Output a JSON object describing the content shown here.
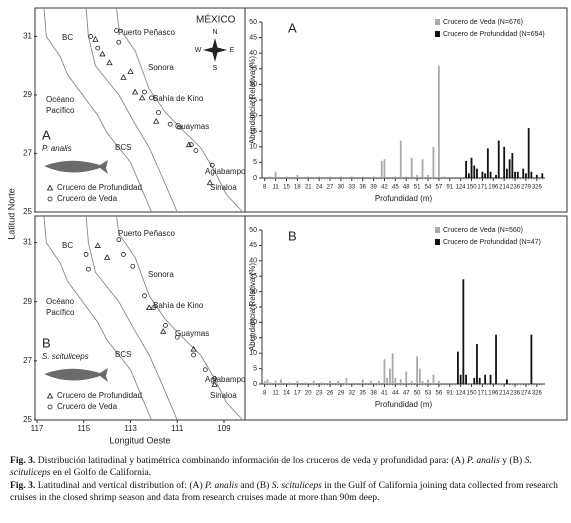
{
  "figure": {
    "ylabel": "Latitud Norte",
    "xlabel": "Longitud Oeste"
  },
  "chart_data": [
    {
      "type": "map",
      "panel": "A",
      "species": "P. analis",
      "places": [
        "BC",
        "Puerto Peñasco",
        "MÉXICO",
        "Sonora",
        "Océano",
        "Pacífico",
        "Bahía de Kino",
        "Guaymas",
        "BCS",
        "Agiabampo",
        "Sinaloa"
      ],
      "compass": [
        "N",
        "E",
        "S",
        "W"
      ],
      "xlim": [
        117,
        108.1
      ],
      "ylim": [
        25,
        31.97
      ],
      "yticks": [
        25,
        27,
        29,
        31
      ],
      "series": [
        {
          "name": "Crucero de Profundidad",
          "marker": "triangle",
          "x": [
            114.5,
            114.2,
            113.9,
            113.3,
            113.0,
            112.8,
            112.5,
            111.9,
            110.5,
            109.6
          ],
          "y": [
            30.9,
            30.4,
            30.1,
            29.6,
            29.8,
            29.1,
            28.9,
            28.1,
            27.3,
            26.0
          ]
        },
        {
          "name": "Crucero de Veda",
          "marker": "circle",
          "x": [
            114.7,
            114.4,
            113.6,
            113.5,
            112.4,
            112.1,
            111.8,
            111.3,
            110.9,
            110.4,
            110.2,
            109.5
          ],
          "y": [
            31.0,
            30.6,
            31.2,
            30.8,
            29.1,
            28.9,
            28.4,
            28.0,
            27.9,
            27.3,
            27.1,
            26.6
          ]
        }
      ]
    },
    {
      "type": "bar",
      "panel": "A",
      "ylabel": "Abundancia Relativa (%)",
      "xlabel": "Profundidad (m)",
      "xlim": [
        0,
        104
      ],
      "ylim": [
        0,
        50
      ],
      "yticks": [
        0,
        5,
        10,
        15,
        20,
        25,
        30,
        35,
        40,
        45,
        50
      ],
      "xticks": [
        {
          "value": 1,
          "label": "8"
        },
        {
          "value": 5,
          "label": "11"
        },
        {
          "value": 9,
          "label": "15"
        },
        {
          "value": 13,
          "label": "18"
        },
        {
          "value": 17,
          "label": "21"
        },
        {
          "value": 21,
          "label": "24"
        },
        {
          "value": 25,
          "label": "27"
        },
        {
          "value": 29,
          "label": "30"
        },
        {
          "value": 33,
          "label": "33"
        },
        {
          "value": 37,
          "label": "36"
        },
        {
          "value": 41,
          "label": "39"
        },
        {
          "value": 45,
          "label": "42"
        },
        {
          "value": 49,
          "label": "45"
        },
        {
          "value": 53,
          "label": "48"
        },
        {
          "value": 57,
          "label": "51"
        },
        {
          "value": 61,
          "label": "54"
        },
        {
          "value": 65,
          "label": "57"
        },
        {
          "value": 69,
          "label": "91"
        },
        {
          "value": 73,
          "label": "124"
        },
        {
          "value": 77,
          "label": "150"
        },
        {
          "value": 81,
          "label": "171"
        },
        {
          "value": 85,
          "label": "196"
        },
        {
          "value": 89,
          "label": "214"
        },
        {
          "value": 93,
          "label": "236"
        },
        {
          "value": 97,
          "label": "279"
        },
        {
          "value": 101,
          "label": "326"
        }
      ],
      "series": [
        {
          "name": "Crucero de Veda (N=676)",
          "color": "#a9a9a9",
          "x": [
            3,
            5,
            9,
            13,
            17,
            21,
            25,
            29,
            33,
            37,
            41,
            44,
            45,
            49,
            51,
            53,
            55,
            57,
            59,
            61,
            63,
            65,
            67
          ],
          "values": [
            0.5,
            2,
            0.5,
            1,
            0.5,
            0.5,
            0.5,
            0.5,
            0.5,
            0.5,
            0.5,
            5.5,
            6,
            0.5,
            12,
            0.5,
            6.5,
            1,
            6,
            1,
            10,
            36,
            0.5
          ]
        },
        {
          "name": "Crucero de Profundidad (N=654)",
          "color": "#111111",
          "x": [
            75,
            76,
            77,
            78,
            79,
            81,
            82,
            83,
            84,
            86,
            87,
            89,
            90,
            91,
            92,
            93,
            94,
            96,
            97,
            98,
            99,
            101,
            103
          ],
          "values": [
            5.5,
            1.5,
            6.5,
            4,
            3,
            2,
            1.5,
            9.5,
            2,
            1,
            12,
            10,
            3,
            6,
            8,
            2,
            2,
            3,
            1.5,
            16,
            2,
            1,
            1.5
          ]
        }
      ]
    },
    {
      "type": "map",
      "panel": "B",
      "species": "S. scituliceps",
      "places": [
        "BC",
        "Puerto Peñasco",
        "Sonora",
        "Océano",
        "Pacífico",
        "Bahía de Kino",
        "Guaymas",
        "BCS",
        "Agiabampo",
        "Sinaloa"
      ],
      "xlim": [
        117,
        108.1
      ],
      "ylim": [
        25,
        31.9
      ],
      "yticks": [
        25,
        27,
        29,
        31
      ],
      "xticks": [
        117,
        115,
        113,
        111,
        109
      ],
      "series": [
        {
          "name": "Crucero de Profundidad",
          "marker": "triangle",
          "x": [
            114.4,
            114.0,
            112.2,
            111.6,
            110.3,
            109.4
          ],
          "y": [
            30.9,
            30.5,
            28.8,
            28.0,
            27.4,
            26.2
          ]
        },
        {
          "name": "Crucero de Veda",
          "marker": "circle",
          "x": [
            114.9,
            114.8,
            113.5,
            113.3,
            112.9,
            112.4,
            112.0,
            111.5,
            111.0,
            110.3,
            109.8,
            109.4
          ],
          "y": [
            30.6,
            30.1,
            31.1,
            30.6,
            30.2,
            29.2,
            28.8,
            28.2,
            27.8,
            27.2,
            26.7,
            26.4
          ]
        }
      ]
    },
    {
      "type": "bar",
      "panel": "B",
      "ylabel": "Abundancia Relativa (%)",
      "xlabel": "Profundidad (m)",
      "xlim": [
        0,
        104
      ],
      "ylim": [
        0,
        50
      ],
      "yticks": [
        0,
        5,
        10,
        15,
        20,
        25,
        30,
        35,
        40,
        45,
        50
      ],
      "xticks": [
        {
          "value": 1,
          "label": "8"
        },
        {
          "value": 5,
          "label": "11"
        },
        {
          "value": 9,
          "label": "14"
        },
        {
          "value": 13,
          "label": "17"
        },
        {
          "value": 17,
          "label": "20"
        },
        {
          "value": 21,
          "label": "23"
        },
        {
          "value": 25,
          "label": "26"
        },
        {
          "value": 29,
          "label": "29"
        },
        {
          "value": 33,
          "label": "32"
        },
        {
          "value": 37,
          "label": "35"
        },
        {
          "value": 41,
          "label": "38"
        },
        {
          "value": 45,
          "label": "41"
        },
        {
          "value": 49,
          "label": "44"
        },
        {
          "value": 53,
          "label": "47"
        },
        {
          "value": 57,
          "label": "50"
        },
        {
          "value": 61,
          "label": "53"
        },
        {
          "value": 65,
          "label": "56"
        },
        {
          "value": 69,
          "label": "91"
        },
        {
          "value": 73,
          "label": "124"
        },
        {
          "value": 77,
          "label": "150"
        },
        {
          "value": 81,
          "label": "171"
        },
        {
          "value": 85,
          "label": "196"
        },
        {
          "value": 89,
          "label": "214"
        },
        {
          "value": 93,
          "label": "236"
        },
        {
          "value": 97,
          "label": "274"
        },
        {
          "value": 101,
          "label": "326"
        }
      ],
      "series": [
        {
          "name": "Crucero de Veda (N=560)",
          "color": "#a9a9a9",
          "x": [
            1,
            2,
            3,
            5,
            7,
            10,
            13,
            16,
            19,
            22,
            25,
            28,
            31,
            34,
            37,
            40,
            43,
            45,
            46,
            47,
            48,
            49,
            51,
            53,
            55,
            57,
            58,
            59,
            61,
            63,
            65
          ],
          "values": [
            1,
            1.5,
            0.5,
            1,
            1.5,
            0.5,
            1,
            0.5,
            1,
            0.5,
            1,
            1,
            2,
            0.5,
            1.5,
            1,
            1,
            8,
            2,
            5,
            10,
            2,
            1.5,
            4,
            1,
            9,
            5,
            1,
            1.5,
            3,
            1
          ]
        },
        {
          "name": "Crucero de Profundidad (N=47)",
          "color": "#111111",
          "x": [
            72,
            73,
            74,
            75,
            78,
            79,
            80,
            82,
            84,
            86,
            90,
            99
          ],
          "values": [
            10.5,
            3,
            34,
            3,
            2,
            13,
            2,
            3,
            3,
            16,
            1.5,
            16
          ]
        }
      ]
    }
  ],
  "caption": {
    "es": [
      "Fig. 3.",
      " Distribución latitudinal y batimétrica combinando información de los cruceros de veda y profundidad para: (A) ",
      "P. analis",
      " y (B) ",
      "S. scituliceps",
      " en el Golfo de California."
    ],
    "en": [
      "Fig. 3.",
      " Latitudinal and vertical distribution of: (A) ",
      "P. analis",
      " and (B) ",
      "S. scituliceps",
      " in the Gulf of California joining data collected from research cruises in the closed shrimp season and data from research cruises made at more than 90m deep."
    ]
  }
}
